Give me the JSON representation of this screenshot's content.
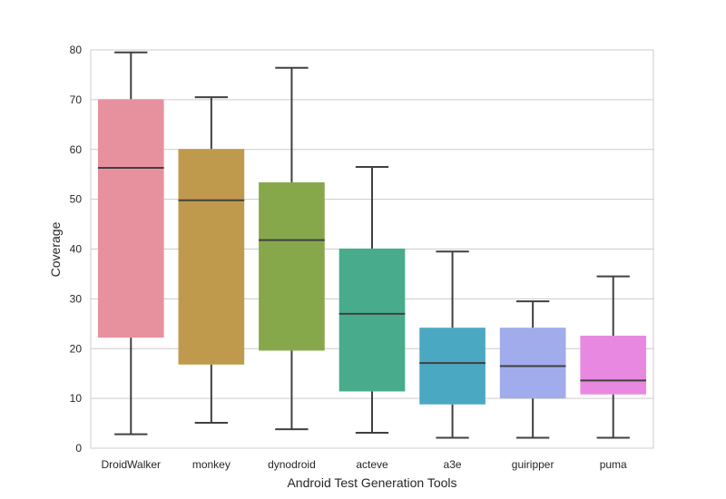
{
  "chart_data": {
    "type": "boxplot",
    "title": "",
    "xlabel": "Android Test Generation Tools",
    "ylabel": "Coverage",
    "ylim": [
      0,
      80
    ],
    "yticks": [
      0,
      10,
      20,
      30,
      40,
      50,
      60,
      70,
      80
    ],
    "grid": "horizontal",
    "categories": [
      "DroidWalker",
      "monkey",
      "dynodroid",
      "acteve",
      "a3e",
      "guiripper",
      "puma"
    ],
    "boxes": [
      {
        "category": "DroidWalker",
        "whisker_low": 2.8,
        "q1": 22.2,
        "median": 56.3,
        "q3": 70.1,
        "whisker_high": 79.5,
        "color": "#e8919e"
      },
      {
        "category": "monkey",
        "whisker_low": 5.1,
        "q1": 16.8,
        "median": 49.8,
        "q3": 60.1,
        "whisker_high": 70.5,
        "color": "#c09a4c"
      },
      {
        "category": "dynodroid",
        "whisker_low": 3.8,
        "q1": 19.6,
        "median": 41.8,
        "q3": 53.4,
        "whisker_high": 76.4,
        "color": "#87a84a"
      },
      {
        "category": "acteve",
        "whisker_low": 3.1,
        "q1": 11.4,
        "median": 27.0,
        "q3": 40.1,
        "whisker_high": 56.5,
        "color": "#48ac8c"
      },
      {
        "category": "a3e",
        "whisker_low": 2.1,
        "q1": 8.8,
        "median": 17.1,
        "q3": 24.2,
        "whisker_high": 39.5,
        "color": "#4ba8c2"
      },
      {
        "category": "guiripper",
        "whisker_low": 2.1,
        "q1": 10.0,
        "median": 16.5,
        "q3": 24.2,
        "whisker_high": 29.5,
        "color": "#a0aceb"
      },
      {
        "category": "puma",
        "whisker_low": 2.1,
        "q1": 10.8,
        "median": 13.6,
        "q3": 22.6,
        "whisker_high": 34.5,
        "color": "#e988e1"
      }
    ],
    "colors": {
      "grid": "#cccccc",
      "frame": "#cccccc",
      "lines": "#404040"
    }
  }
}
